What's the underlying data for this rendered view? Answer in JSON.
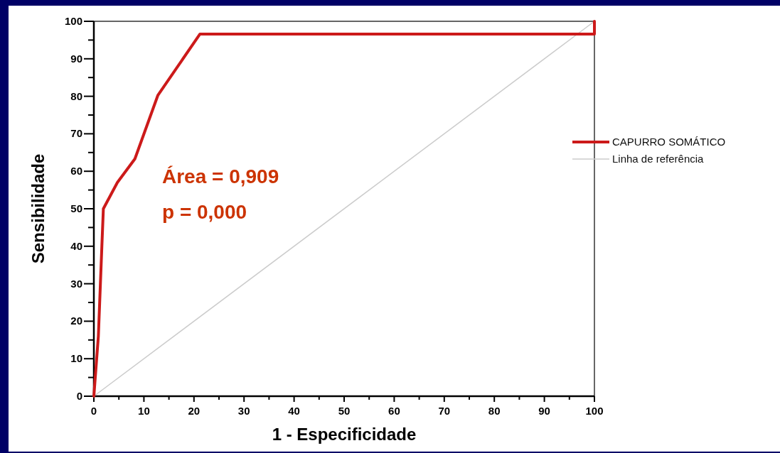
{
  "chart_data": {
    "type": "line",
    "xlabel": "1 - Especificidade",
    "ylabel": "Sensibilidade",
    "xlim": [
      0,
      100
    ],
    "ylim": [
      0,
      100
    ],
    "xticks": [
      0,
      {
        "value": 5,
        "label": null
      },
      10,
      {
        "value": 15,
        "label": null
      },
      20,
      {
        "value": 25,
        "label": null
      },
      30,
      {
        "value": 35,
        "label": null
      },
      40,
      {
        "value": 45,
        "label": null
      },
      50,
      {
        "value": 55,
        "label": null
      },
      60,
      {
        "value": 65,
        "label": null
      },
      70,
      {
        "value": 75,
        "label": null
      },
      80,
      {
        "value": 85,
        "label": null
      },
      90,
      {
        "value": 95,
        "label": null
      },
      100
    ],
    "yticks": [
      0,
      {
        "value": 5,
        "label": null
      },
      10,
      {
        "value": 15,
        "label": null
      },
      20,
      {
        "value": 25,
        "label": null
      },
      30,
      {
        "value": 35,
        "label": null
      },
      40,
      {
        "value": 45,
        "label": null
      },
      50,
      {
        "value": 55,
        "label": null
      },
      60,
      {
        "value": 65,
        "label": null
      },
      70,
      {
        "value": 75,
        "label": null
      },
      80,
      {
        "value": 85,
        "label": null
      },
      90,
      {
        "value": 95,
        "label": null
      },
      100
    ],
    "series": [
      {
        "name": "CAPURRO SOMÁTICO",
        "color": "#cc1a1a",
        "x": [
          0,
          0.9,
          1.6,
          1.9,
          4.7,
          8.2,
          12.8,
          21.2,
          100,
          100
        ],
        "values": [
          0,
          16,
          40,
          50,
          57,
          63.3,
          80.3,
          96.6,
          96.6,
          100
        ]
      },
      {
        "name": "Linha de referência",
        "color": "#cccccc",
        "x": [
          0,
          100
        ],
        "values": [
          0,
          100
        ]
      }
    ],
    "annotations": [
      "Área = 0,909",
      "p = 0,000"
    ],
    "legend": "right",
    "grid": false,
    "marker": "none",
    "line_style": "solid"
  }
}
